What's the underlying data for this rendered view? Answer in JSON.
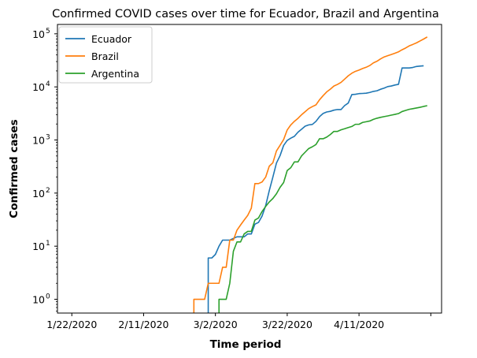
{
  "chart_data": {
    "type": "line",
    "title": "Confirmed COVID cases over time for Ecuador, Brazil and Argentina",
    "xlabel": "Time period",
    "ylabel": "Confirmed cases",
    "y_scale": "log",
    "ylim": [
      0.55,
      150000
    ],
    "xlim": [
      "2020-01-18",
      "2020-05-04"
    ],
    "x_ticks": [
      {
        "date": "2020-01-22",
        "label": "1/22/2020"
      },
      {
        "date": "2020-02-11",
        "label": "2/11/2020"
      },
      {
        "date": "2020-03-02",
        "label": "3/2/2020"
      },
      {
        "date": "2020-03-22",
        "label": "3/22/2020"
      },
      {
        "date": "2020-04-11",
        "label": "4/11/2020"
      },
      {
        "date": "2020-05-01",
        "label": ""
      }
    ],
    "y_ticks": [
      {
        "value": 1,
        "base": "10",
        "exp": "0"
      },
      {
        "value": 10,
        "base": "10",
        "exp": "1"
      },
      {
        "value": 100,
        "base": "10",
        "exp": "2"
      },
      {
        "value": 1000,
        "base": "10",
        "exp": "3"
      },
      {
        "value": 10000,
        "base": "10",
        "exp": "4"
      },
      {
        "value": 100000,
        "base": "10",
        "exp": "5"
      }
    ],
    "grid": false,
    "legend_position": "top-left",
    "series": [
      {
        "name": "Ecuador",
        "color": "#1f77b4",
        "points": [
          [
            "2020-02-29",
            0.3
          ],
          [
            "2020-02-29",
            6
          ],
          [
            "2020-03-01",
            6
          ],
          [
            "2020-03-02",
            7
          ],
          [
            "2020-03-03",
            10
          ],
          [
            "2020-03-04",
            13
          ],
          [
            "2020-03-06",
            13
          ],
          [
            "2020-03-07",
            14
          ],
          [
            "2020-03-08",
            15
          ],
          [
            "2020-03-10",
            15
          ],
          [
            "2020-03-11",
            17
          ],
          [
            "2020-03-12",
            17
          ],
          [
            "2020-03-13",
            26
          ],
          [
            "2020-03-14",
            28
          ],
          [
            "2020-03-15",
            37
          ],
          [
            "2020-03-16",
            58
          ],
          [
            "2020-03-17",
            111
          ],
          [
            "2020-03-18",
            199
          ],
          [
            "2020-03-19",
            367
          ],
          [
            "2020-03-20",
            506
          ],
          [
            "2020-03-21",
            789
          ],
          [
            "2020-03-22",
            981
          ],
          [
            "2020-03-23",
            1082
          ],
          [
            "2020-03-24",
            1173
          ],
          [
            "2020-03-25",
            1403
          ],
          [
            "2020-03-26",
            1595
          ],
          [
            "2020-03-27",
            1823
          ],
          [
            "2020-03-28",
            1924
          ],
          [
            "2020-03-29",
            1962
          ],
          [
            "2020-03-30",
            2240
          ],
          [
            "2020-03-31",
            2748
          ],
          [
            "2020-04-01",
            3163
          ],
          [
            "2020-04-02",
            3368
          ],
          [
            "2020-04-03",
            3465
          ],
          [
            "2020-04-04",
            3646
          ],
          [
            "2020-04-05",
            3747
          ],
          [
            "2020-04-06",
            3747
          ],
          [
            "2020-04-07",
            4450
          ],
          [
            "2020-04-08",
            4965
          ],
          [
            "2020-04-09",
            7161
          ],
          [
            "2020-04-10",
            7257
          ],
          [
            "2020-04-11",
            7466
          ],
          [
            "2020-04-12",
            7529
          ],
          [
            "2020-04-13",
            7603
          ],
          [
            "2020-04-14",
            7858
          ],
          [
            "2020-04-15",
            8225
          ],
          [
            "2020-04-16",
            8450
          ],
          [
            "2020-04-17",
            9022
          ],
          [
            "2020-04-18",
            9468
          ],
          [
            "2020-04-19",
            10128
          ],
          [
            "2020-04-20",
            10398
          ],
          [
            "2020-04-21",
            10850
          ],
          [
            "2020-04-22",
            11183
          ],
          [
            "2020-04-23",
            22719
          ],
          [
            "2020-04-24",
            22719
          ],
          [
            "2020-04-25",
            22719
          ],
          [
            "2020-04-26",
            23240
          ],
          [
            "2020-04-27",
            24258
          ],
          [
            "2020-04-28",
            24675
          ],
          [
            "2020-04-29",
            24934
          ]
        ]
      },
      {
        "name": "Brazil",
        "color": "#ff7f0e",
        "points": [
          [
            "2020-02-25",
            0.3
          ],
          [
            "2020-02-25",
            1
          ],
          [
            "2020-02-28",
            1
          ],
          [
            "2020-02-29",
            2
          ],
          [
            "2020-03-03",
            2
          ],
          [
            "2020-03-04",
            4
          ],
          [
            "2020-03-05",
            4
          ],
          [
            "2020-03-06",
            13
          ],
          [
            "2020-03-07",
            13
          ],
          [
            "2020-03-08",
            20
          ],
          [
            "2020-03-09",
            25
          ],
          [
            "2020-03-10",
            31
          ],
          [
            "2020-03-11",
            38
          ],
          [
            "2020-03-12",
            52
          ],
          [
            "2020-03-13",
            151
          ],
          [
            "2020-03-14",
            151
          ],
          [
            "2020-03-15",
            162
          ],
          [
            "2020-03-16",
            200
          ],
          [
            "2020-03-17",
            321
          ],
          [
            "2020-03-18",
            372
          ],
          [
            "2020-03-19",
            621
          ],
          [
            "2020-03-20",
            793
          ],
          [
            "2020-03-21",
            1021
          ],
          [
            "2020-03-22",
            1546
          ],
          [
            "2020-03-23",
            1924
          ],
          [
            "2020-03-24",
            2247
          ],
          [
            "2020-03-25",
            2554
          ],
          [
            "2020-03-26",
            2985
          ],
          [
            "2020-03-27",
            3417
          ],
          [
            "2020-03-28",
            3904
          ],
          [
            "2020-03-29",
            4256
          ],
          [
            "2020-03-30",
            4579
          ],
          [
            "2020-03-31",
            5717
          ],
          [
            "2020-04-01",
            6836
          ],
          [
            "2020-04-02",
            8044
          ],
          [
            "2020-04-03",
            9056
          ],
          [
            "2020-04-04",
            10360
          ],
          [
            "2020-04-05",
            11130
          ],
          [
            "2020-04-06",
            12161
          ],
          [
            "2020-04-07",
            14034
          ],
          [
            "2020-04-08",
            16170
          ],
          [
            "2020-04-09",
            18092
          ],
          [
            "2020-04-10",
            19638
          ],
          [
            "2020-04-11",
            20727
          ],
          [
            "2020-04-12",
            22192
          ],
          [
            "2020-04-13",
            23430
          ],
          [
            "2020-04-14",
            25262
          ],
          [
            "2020-04-15",
            28320
          ],
          [
            "2020-04-16",
            30425
          ],
          [
            "2020-04-17",
            33682
          ],
          [
            "2020-04-18",
            36658
          ],
          [
            "2020-04-19",
            38654
          ],
          [
            "2020-04-20",
            40743
          ],
          [
            "2020-04-21",
            43079
          ],
          [
            "2020-04-22",
            45757
          ],
          [
            "2020-04-23",
            50036
          ],
          [
            "2020-04-24",
            54043
          ],
          [
            "2020-04-25",
            59324
          ],
          [
            "2020-04-26",
            63100
          ],
          [
            "2020-04-27",
            67446
          ],
          [
            "2020-04-28",
            73235
          ],
          [
            "2020-04-29",
            79685
          ],
          [
            "2020-04-30",
            87187
          ]
        ]
      },
      {
        "name": "Argentina",
        "color": "#2ca02c",
        "points": [
          [
            "2020-03-03",
            0.3
          ],
          [
            "2020-03-03",
            1
          ],
          [
            "2020-03-05",
            1
          ],
          [
            "2020-03-06",
            2
          ],
          [
            "2020-03-07",
            8
          ],
          [
            "2020-03-08",
            12
          ],
          [
            "2020-03-09",
            12
          ],
          [
            "2020-03-10",
            17
          ],
          [
            "2020-03-11",
            19
          ],
          [
            "2020-03-12",
            19
          ],
          [
            "2020-03-13",
            31
          ],
          [
            "2020-03-14",
            34
          ],
          [
            "2020-03-15",
            45
          ],
          [
            "2020-03-16",
            56
          ],
          [
            "2020-03-17",
            68
          ],
          [
            "2020-03-18",
            79
          ],
          [
            "2020-03-19",
            97
          ],
          [
            "2020-03-20",
            128
          ],
          [
            "2020-03-21",
            158
          ],
          [
            "2020-03-22",
            266
          ],
          [
            "2020-03-23",
            301
          ],
          [
            "2020-03-24",
            387
          ],
          [
            "2020-03-25",
            387
          ],
          [
            "2020-03-26",
            502
          ],
          [
            "2020-03-27",
            589
          ],
          [
            "2020-03-28",
            690
          ],
          [
            "2020-03-29",
            745
          ],
          [
            "2020-03-30",
            820
          ],
          [
            "2020-03-31",
            1054
          ],
          [
            "2020-04-01",
            1054
          ],
          [
            "2020-04-02",
            1133
          ],
          [
            "2020-04-03",
            1265
          ],
          [
            "2020-04-04",
            1451
          ],
          [
            "2020-04-05",
            1451
          ],
          [
            "2020-04-06",
            1554
          ],
          [
            "2020-04-07",
            1628
          ],
          [
            "2020-04-08",
            1715
          ],
          [
            "2020-04-09",
            1795
          ],
          [
            "2020-04-10",
            1975
          ],
          [
            "2020-04-11",
            1975
          ],
          [
            "2020-04-12",
            2142
          ],
          [
            "2020-04-13",
            2208
          ],
          [
            "2020-04-14",
            2277
          ],
          [
            "2020-04-15",
            2443
          ],
          [
            "2020-04-16",
            2571
          ],
          [
            "2020-04-17",
            2669
          ],
          [
            "2020-04-18",
            2758
          ],
          [
            "2020-04-19",
            2839
          ],
          [
            "2020-04-20",
            2941
          ],
          [
            "2020-04-21",
            3031
          ],
          [
            "2020-04-22",
            3144
          ],
          [
            "2020-04-23",
            3435
          ],
          [
            "2020-04-24",
            3607
          ],
          [
            "2020-04-25",
            3780
          ],
          [
            "2020-04-26",
            3892
          ],
          [
            "2020-04-27",
            4003
          ],
          [
            "2020-04-28",
            4127
          ],
          [
            "2020-04-29",
            4285
          ],
          [
            "2020-04-30",
            4428
          ]
        ]
      }
    ]
  }
}
